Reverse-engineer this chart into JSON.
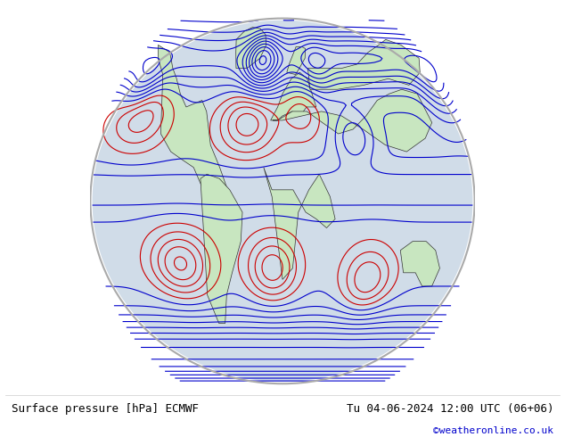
{
  "title_left": "Surface pressure [hPa] ECMWF",
  "title_right": "Tu 04-06-2024 12:00 UTC (06+06)",
  "copyright": "©weatheronline.co.uk",
  "bg_color": "#ffffff",
  "map_bg": "#e8e8e8",
  "land_color": "#c8e6c0",
  "ocean_color": "#dce8f0",
  "coast_color": "#000000",
  "contour_colors": {
    "low": "#0000ff",
    "high": "#ff0000",
    "ref": "#000000"
  },
  "ref_pressure": 1013,
  "pressure_min": 960,
  "pressure_max": 1044,
  "pressure_step": 4,
  "font_size_labels": 8,
  "font_size_title": 9,
  "font_size_copyright": 8
}
